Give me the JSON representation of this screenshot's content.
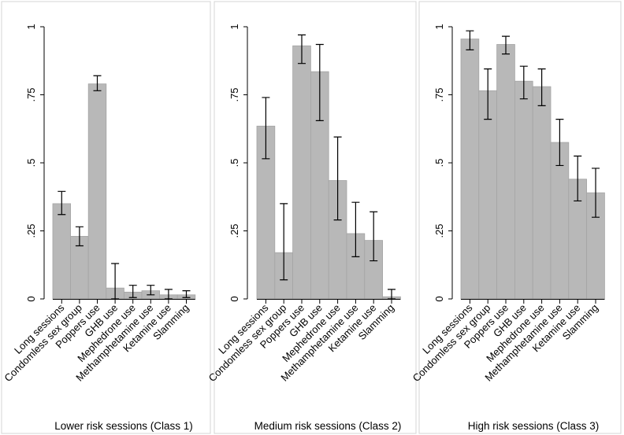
{
  "chart_data": [
    {
      "type": "bar",
      "title": "Lower risk sessions (Class 1)",
      "categories": [
        "Long sessions",
        "Condomless sex group",
        "Poppers use",
        "GHB use",
        "Mephedrone use",
        "Methamphetamine use",
        "Ketamine use",
        "Slamming"
      ],
      "values": [
        0.35,
        0.23,
        0.79,
        0.04,
        0.025,
        0.03,
        0.015,
        0.015
      ],
      "ci_low": [
        0.31,
        0.195,
        0.765,
        0.0,
        0.005,
        0.015,
        0.0,
        0.005
      ],
      "ci_high": [
        0.395,
        0.265,
        0.82,
        0.13,
        0.05,
        0.05,
        0.035,
        0.03
      ],
      "yticks": [
        "0",
        ".25",
        ".5",
        ".75",
        "1"
      ],
      "ylim": [
        0,
        1
      ]
    },
    {
      "type": "bar",
      "title": "Medium risk sessions (Class 2)",
      "categories": [
        "Long sessions",
        "Condomless sex group",
        "Poppers use",
        "GHB use",
        "Mephedrone use",
        "Methamphetamine use",
        "Ketamine use",
        "Slamming"
      ],
      "values": [
        0.635,
        0.17,
        0.93,
        0.835,
        0.435,
        0.24,
        0.215,
        0.008
      ],
      "ci_low": [
        0.515,
        0.07,
        0.865,
        0.655,
        0.29,
        0.155,
        0.14,
        0.0
      ],
      "ci_high": [
        0.74,
        0.35,
        0.97,
        0.935,
        0.595,
        0.355,
        0.32,
        0.035
      ],
      "yticks": [
        "0",
        ".25",
        ".5",
        ".75",
        "1"
      ],
      "ylim": [
        0,
        1
      ]
    },
    {
      "type": "bar",
      "title": "High risk sessions (Class 3)",
      "categories": [
        "Long sessions",
        "Condomless sex group",
        "Poppers use",
        "GHB use",
        "Mephedrone use",
        "Methamphetamine use",
        "Ketamine use",
        "Slamming"
      ],
      "values": [
        0.955,
        0.765,
        0.935,
        0.8,
        0.78,
        0.575,
        0.44,
        0.39
      ],
      "ci_low": [
        0.915,
        0.66,
        0.9,
        0.735,
        0.71,
        0.49,
        0.36,
        0.3
      ],
      "ci_high": [
        0.985,
        0.845,
        0.965,
        0.855,
        0.845,
        0.66,
        0.525,
        0.48
      ],
      "yticks": [
        "0",
        ".25",
        ".5",
        ".75",
        "1"
      ],
      "ylim": [
        0,
        1
      ]
    }
  ],
  "colors": {
    "bar_fill": "#b8b8b8",
    "bar_edge": "#a4a4a4",
    "error_bar": "#000000",
    "panel_border": "#d4d4d4",
    "background": "#ffffff"
  }
}
